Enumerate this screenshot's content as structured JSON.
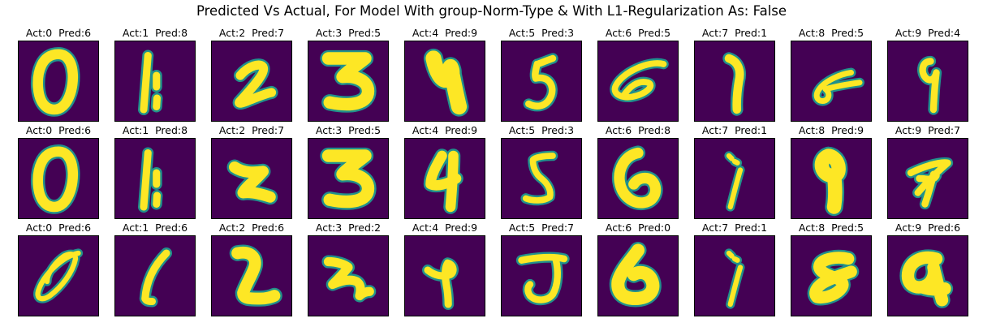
{
  "figure": {
    "title": "Predicted Vs Actual, For Model With group-Norm-Type & With L1-Regularization As: False",
    "colors": {
      "background": "#440154",
      "stroke_core": "#fde725",
      "stroke_edge": "#21918c"
    }
  },
  "chart_data": {
    "type": "image_grid",
    "title": "Predicted Vs Actual, For Model With group-Norm-Type & With L1-Regularization As: False",
    "rows": 3,
    "cols": 10,
    "colormap": "viridis",
    "panels": [
      {
        "label": "Act:0  Pred:6",
        "actual": 0,
        "predicted": 6,
        "glyph": "0"
      },
      {
        "label": "Act:1  Pred:8",
        "actual": 1,
        "predicted": 8,
        "glyph": "1a"
      },
      {
        "label": "Act:2  Pred:7",
        "actual": 2,
        "predicted": 7,
        "glyph": "2a"
      },
      {
        "label": "Act:3  Pred:5",
        "actual": 3,
        "predicted": 5,
        "glyph": "3a"
      },
      {
        "label": "Act:4  Pred:9",
        "actual": 4,
        "predicted": 9,
        "glyph": "4a"
      },
      {
        "label": "Act:5  Pred:3",
        "actual": 5,
        "predicted": 3,
        "glyph": "5a"
      },
      {
        "label": "Act:6  Pred:5",
        "actual": 6,
        "predicted": 5,
        "glyph": "6a"
      },
      {
        "label": "Act:7  Pred:1",
        "actual": 7,
        "predicted": 1,
        "glyph": "7a"
      },
      {
        "label": "Act:8  Pred:5",
        "actual": 8,
        "predicted": 5,
        "glyph": "8a"
      },
      {
        "label": "Act:9  Pred:4",
        "actual": 9,
        "predicted": 4,
        "glyph": "9a"
      },
      {
        "label": "Act:0  Pred:6",
        "actual": 0,
        "predicted": 6,
        "glyph": "0"
      },
      {
        "label": "Act:1  Pred:8",
        "actual": 1,
        "predicted": 8,
        "glyph": "1a"
      },
      {
        "label": "Act:2  Pred:7",
        "actual": 2,
        "predicted": 7,
        "glyph": "2b"
      },
      {
        "label": "Act:3  Pred:5",
        "actual": 3,
        "predicted": 5,
        "glyph": "3a"
      },
      {
        "label": "Act:4  Pred:9",
        "actual": 4,
        "predicted": 9,
        "glyph": "4b"
      },
      {
        "label": "Act:5  Pred:3",
        "actual": 5,
        "predicted": 3,
        "glyph": "5b"
      },
      {
        "label": "Act:6  Pred:8",
        "actual": 6,
        "predicted": 8,
        "glyph": "6b"
      },
      {
        "label": "Act:7  Pred:1",
        "actual": 7,
        "predicted": 1,
        "glyph": "7b"
      },
      {
        "label": "Act:8  Pred:9",
        "actual": 8,
        "predicted": 9,
        "glyph": "8b"
      },
      {
        "label": "Act:9  Pred:7",
        "actual": 9,
        "predicted": 7,
        "glyph": "9b"
      },
      {
        "label": "Act:0  Pred:6",
        "actual": 0,
        "predicted": 6,
        "glyph": "0c"
      },
      {
        "label": "Act:1  Pred:6",
        "actual": 1,
        "predicted": 6,
        "glyph": "1c"
      },
      {
        "label": "Act:2  Pred:6",
        "actual": 2,
        "predicted": 6,
        "glyph": "2c"
      },
      {
        "label": "Act:3  Pred:2",
        "actual": 3,
        "predicted": 2,
        "glyph": "3c"
      },
      {
        "label": "Act:4  Pred:9",
        "actual": 4,
        "predicted": 9,
        "glyph": "4c"
      },
      {
        "label": "Act:5  Pred:7",
        "actual": 5,
        "predicted": 7,
        "glyph": "5c"
      },
      {
        "label": "Act:6  Pred:0",
        "actual": 6,
        "predicted": 0,
        "glyph": "6c"
      },
      {
        "label": "Act:7  Pred:1",
        "actual": 7,
        "predicted": 1,
        "glyph": "7b"
      },
      {
        "label": "Act:8  Pred:5",
        "actual": 8,
        "predicted": 5,
        "glyph": "8c"
      },
      {
        "label": "Act:9  Pred:6",
        "actual": 9,
        "predicted": 6,
        "glyph": "9c"
      }
    ]
  }
}
